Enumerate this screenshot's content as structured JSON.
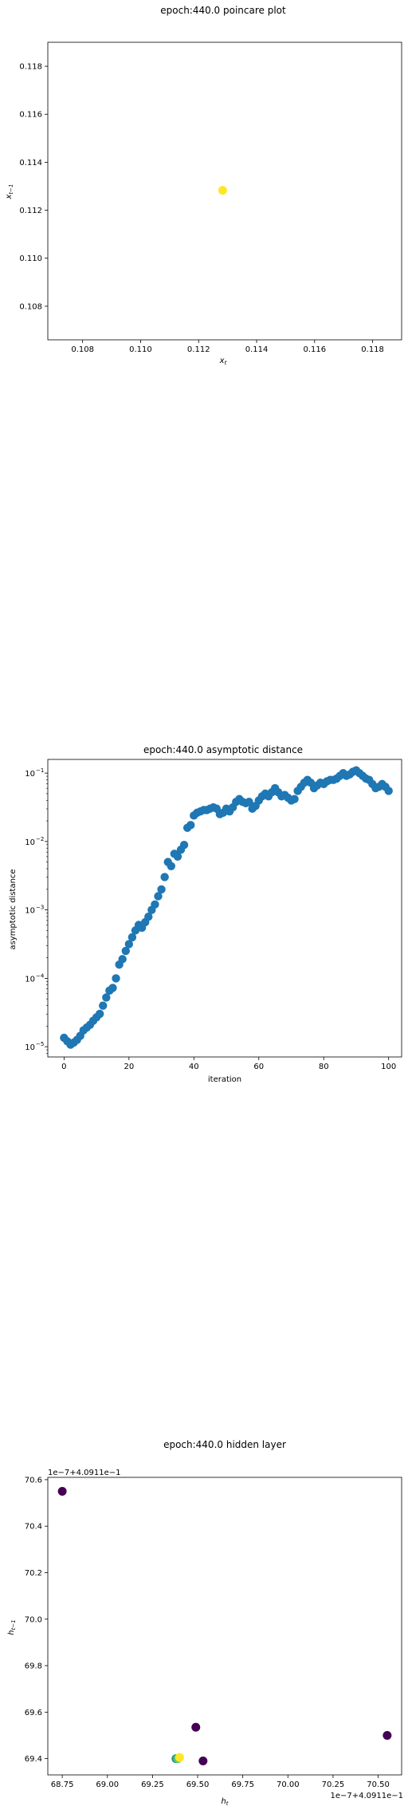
{
  "chart_data": [
    {
      "type": "scatter",
      "title": "epoch:440.0 poincare plot",
      "xlabel": "x_t",
      "ylabel": "x_{t-1}",
      "xlim": [
        0.1068,
        0.119
      ],
      "ylim": [
        0.1066,
        0.119
      ],
      "xticks": [
        0.108,
        0.11,
        0.112,
        0.114,
        0.116,
        0.118
      ],
      "xtick_labels": [
        "0.108",
        "0.110",
        "0.112",
        "0.114",
        "0.116",
        "0.118"
      ],
      "yticks": [
        0.108,
        0.11,
        0.112,
        0.114,
        0.116,
        0.118
      ],
      "ytick_labels": [
        "0.108",
        "0.110",
        "0.112",
        "0.114",
        "0.116",
        "0.118"
      ],
      "points": [
        {
          "x": 0.11283,
          "y": 0.11283,
          "color": "#fde725"
        }
      ]
    },
    {
      "type": "scatter",
      "title": "epoch:440.0 asymptotic distance",
      "xlabel": "iteration",
      "ylabel": "asymptotic distance",
      "yscale": "log",
      "xlim": [
        -5,
        104
      ],
      "ylim_log10": [
        -5.15,
        -0.8
      ],
      "xticks": [
        0,
        20,
        40,
        60,
        80,
        100
      ],
      "xtick_labels": [
        "0",
        "20",
        "40",
        "60",
        "80",
        "100"
      ],
      "yticks_log10": [
        -5,
        -4,
        -3,
        -2,
        -1
      ],
      "ytick_base": "10",
      "ytick_exponents": [
        "−5",
        "−4",
        "−3",
        "−2",
        "−1"
      ],
      "color": "#1f77b4",
      "log10_values": [
        -4.87,
        -4.92,
        -4.97,
        -4.94,
        -4.9,
        -4.84,
        -4.76,
        -4.72,
        -4.68,
        -4.62,
        -4.57,
        -4.52,
        -4.4,
        -4.28,
        -4.18,
        -4.14,
        -4.0,
        -3.8,
        -3.72,
        -3.6,
        -3.5,
        -3.4,
        -3.3,
        -3.22,
        -3.26,
        -3.18,
        -3.1,
        -3.0,
        -2.92,
        -2.8,
        -2.7,
        -2.52,
        -2.3,
        -2.36,
        -2.18,
        -2.22,
        -2.12,
        -2.05,
        -1.8,
        -1.76,
        -1.62,
        -1.58,
        -1.56,
        -1.54,
        -1.54,
        -1.52,
        -1.5,
        -1.52,
        -1.6,
        -1.58,
        -1.52,
        -1.56,
        -1.5,
        -1.42,
        -1.38,
        -1.42,
        -1.44,
        -1.42,
        -1.52,
        -1.48,
        -1.4,
        -1.34,
        -1.3,
        -1.34,
        -1.28,
        -1.22,
        -1.28,
        -1.34,
        -1.32,
        -1.36,
        -1.4,
        -1.38,
        -1.26,
        -1.2,
        -1.14,
        -1.1,
        -1.14,
        -1.22,
        -1.18,
        -1.14,
        -1.16,
        -1.12,
        -1.1,
        -1.1,
        -1.08,
        -1.04,
        -1.0,
        -1.04,
        -1.02,
        -0.98,
        -0.96,
        -1.0,
        -1.04,
        -1.08,
        -1.1,
        -1.16,
        -1.22,
        -1.2,
        -1.16,
        -1.2,
        -1.26
      ]
    },
    {
      "type": "scatter",
      "title": "epoch:440.0 hidden layer",
      "xlabel": "h_t",
      "ylabel": "h_{t-1}",
      "offset_text_y": "1e−7+4.0911e−1",
      "offset_text_x": "1e−7+4.0911e−1",
      "xlim": [
        68.67,
        70.63
      ],
      "ylim": [
        69.33,
        70.61
      ],
      "xticks": [
        68.75,
        69.0,
        69.25,
        69.5,
        69.75,
        70.0,
        70.25,
        70.5
      ],
      "xtick_labels": [
        "68.75",
        "69.00",
        "69.25",
        "69.50",
        "69.75",
        "70.00",
        "70.25",
        "70.50"
      ],
      "yticks": [
        69.4,
        69.6,
        69.8,
        70.0,
        70.2,
        70.4,
        70.6
      ],
      "ytick_labels": [
        "69.4",
        "69.6",
        "69.8",
        "70.0",
        "70.2",
        "70.4",
        "70.6"
      ],
      "points": [
        {
          "x": 68.75,
          "y": 70.55,
          "color": "#440154"
        },
        {
          "x": 70.55,
          "y": 69.5,
          "color": "#440154"
        },
        {
          "x": 69.49,
          "y": 69.535,
          "color": "#440154"
        },
        {
          "x": 69.53,
          "y": 69.39,
          "color": "#440154"
        },
        {
          "x": 69.38,
          "y": 69.4,
          "color": "#21918c"
        },
        {
          "x": 69.39,
          "y": 69.4,
          "color": "#5ec962"
        },
        {
          "x": 69.4,
          "y": 69.405,
          "color": "#fde725"
        }
      ]
    }
  ]
}
